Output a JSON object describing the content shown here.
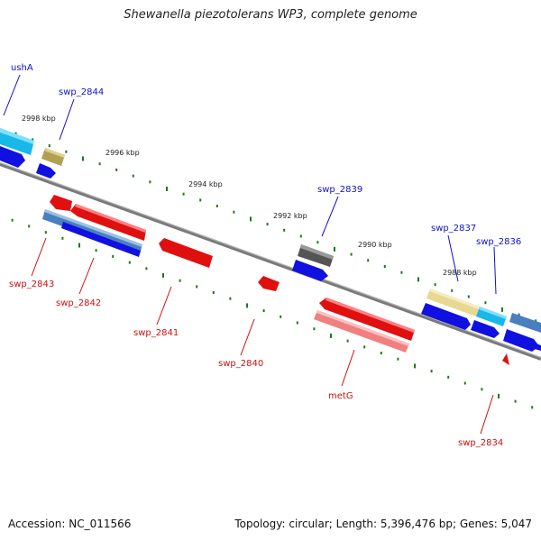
{
  "title": "Shewanella piezotolerans WP3, complete genome",
  "footer": {
    "accession": "Accession: NC_011566",
    "summary": "Topology: circular; Length: 5,396,476 bp; Genes: 5,047"
  },
  "scale_labels": [
    "2998 kbp",
    "2996 kbp",
    "2994 kbp",
    "2992 kbp",
    "2990 kbp",
    "2988 kbp"
  ],
  "gene_labels": {
    "top": [
      "ushA",
      "swp_2844",
      "swp_2839",
      "swp_2837",
      "swp_2836"
    ],
    "bottom": [
      "swp_2843",
      "swp_2842",
      "swp_2841",
      "swp_2840",
      "metG",
      "swp_2834"
    ]
  },
  "colors": {
    "backbone": "#7a7a7a",
    "top_label": "#1010cc",
    "bottom_label": "#cc1010",
    "tick": "#1a7a1a",
    "forward_cds": "#1010e0",
    "reverse_cds": "#e01010"
  }
}
